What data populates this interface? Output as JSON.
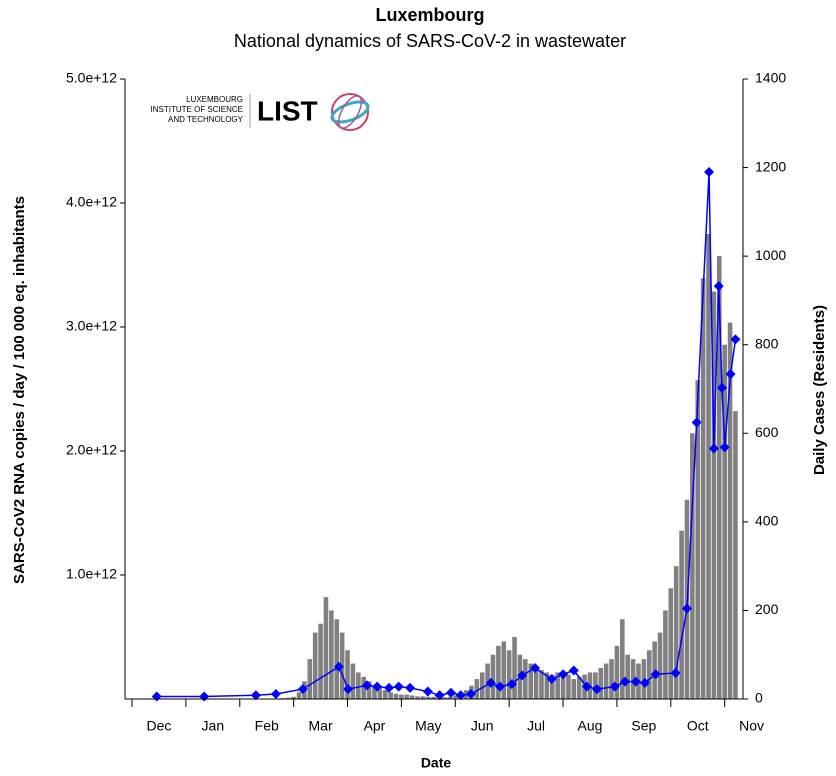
{
  "chart_data": {
    "type": "bar-line",
    "title": "Luxembourg",
    "subtitle": "National dynamics of SARS-CoV-2 in wastewater",
    "xlabel": "Date",
    "ylabel": "SARS-CoV2 RNA copies / day  / 100 000 eq. inhabitants",
    "y2label": "Daily Cases (Residents)",
    "logo": {
      "lines": [
        "LUXEMBOURG",
        "INSTITUTE OF SCIENCE",
        "AND TECHNOLOGY"
      ],
      "name": "LIST"
    },
    "xlim": [
      -0.13,
      11.34
    ],
    "xticks": [
      {
        "value": 0.5,
        "label": "Dec"
      },
      {
        "value": 1.5,
        "label": "Jan"
      },
      {
        "value": 2.5,
        "label": "Feb"
      },
      {
        "value": 3.5,
        "label": "Mar"
      },
      {
        "value": 4.5,
        "label": "Apr"
      },
      {
        "value": 5.5,
        "label": "May"
      },
      {
        "value": 6.5,
        "label": "Jun"
      },
      {
        "value": 7.5,
        "label": "Jul"
      },
      {
        "value": 8.5,
        "label": "Aug"
      },
      {
        "value": 9.5,
        "label": "Sep"
      },
      {
        "value": 10.5,
        "label": "Oct"
      },
      {
        "value": 11.5,
        "label": "Nov"
      }
    ],
    "ylim": [
      0,
      5000000000000.0
    ],
    "yticks": [
      {
        "value": 1000000000000.0,
        "label": "1.0e+12"
      },
      {
        "value": 2000000000000.0,
        "label": "2.0e+12"
      },
      {
        "value": 3000000000000.0,
        "label": "3.0e+12"
      },
      {
        "value": 4000000000000.0,
        "label": "4.0e+12"
      },
      {
        "value": 5000000000000.0,
        "label": "5.0e+12"
      }
    ],
    "y2lim": [
      0,
      1400
    ],
    "y2ticks": [
      0,
      200,
      400,
      600,
      800,
      1000,
      1200,
      1400
    ],
    "series": [
      {
        "name": "Daily cases",
        "type": "bar",
        "axis": "y2",
        "color": "#808080",
        "x": [
          2.8,
          2.9,
          3.0,
          3.1,
          3.2,
          3.3,
          3.4,
          3.5,
          3.6,
          3.7,
          3.8,
          3.9,
          4.0,
          4.1,
          4.2,
          4.3,
          4.4,
          4.5,
          4.6,
          4.7,
          4.8,
          4.9,
          5.0,
          5.1,
          5.2,
          5.3,
          5.4,
          5.5,
          5.6,
          5.7,
          5.8,
          5.9,
          6.0,
          6.1,
          6.2,
          6.3,
          6.4,
          6.5,
          6.6,
          6.7,
          6.8,
          6.9,
          7.0,
          7.1,
          7.2,
          7.3,
          7.4,
          7.5,
          7.6,
          7.7,
          7.8,
          7.9,
          8.0,
          8.1,
          8.2,
          8.3,
          8.4,
          8.5,
          8.6,
          8.7,
          8.8,
          8.9,
          9.0,
          9.1,
          9.2,
          9.3,
          9.4,
          9.5,
          9.6,
          9.7,
          9.8,
          9.9,
          10.0,
          10.1,
          10.2,
          10.3,
          10.4,
          10.5,
          10.6,
          10.7,
          10.8,
          10.9,
          11.0,
          11.1,
          11.2
        ],
        "values": [
          2,
          3,
          5,
          15,
          40,
          90,
          150,
          170,
          230,
          200,
          180,
          150,
          110,
          80,
          60,
          50,
          40,
          30,
          25,
          20,
          15,
          12,
          10,
          10,
          8,
          6,
          6,
          5,
          5,
          4,
          4,
          5,
          8,
          10,
          20,
          30,
          45,
          60,
          80,
          100,
          120,
          130,
          110,
          140,
          100,
          90,
          80,
          70,
          65,
          60,
          55,
          60,
          50,
          55,
          45,
          50,
          55,
          60,
          60,
          70,
          80,
          90,
          120,
          180,
          100,
          90,
          80,
          90,
          110,
          130,
          150,
          200,
          250,
          300,
          380,
          450,
          600,
          720,
          950,
          1050,
          920,
          1000,
          800,
          850,
          650
        ]
      },
      {
        "name": "Wastewater",
        "type": "line",
        "axis": "y",
        "color": "#0000ff",
        "x": [
          0.46,
          1.34,
          2.3,
          2.67,
          3.17,
          3.84,
          4.01,
          4.36,
          4.55,
          4.77,
          4.95,
          5.16,
          5.49,
          5.71,
          5.92,
          6.1,
          6.29,
          6.66,
          6.83,
          7.05,
          7.24,
          7.48,
          7.79,
          8.0,
          8.2,
          8.44,
          8.63,
          8.96,
          9.15,
          9.35,
          9.52,
          9.72,
          10.09,
          10.3,
          10.48,
          10.71,
          10.8,
          10.89,
          10.95,
          11.0,
          11.11,
          11.2
        ],
        "values": [
          20000000000.0,
          20000000000.0,
          30000000000.0,
          40000000000.0,
          80000000000.0,
          260000000000.0,
          80000000000.0,
          110000000000.0,
          100000000000.0,
          90000000000.0,
          100000000000.0,
          90000000000.0,
          60000000000.0,
          30000000000.0,
          50000000000.0,
          30000000000.0,
          40000000000.0,
          130000000000.0,
          100000000000.0,
          120000000000.0,
          190000000000.0,
          250000000000.0,
          160000000000.0,
          200000000000.0,
          230000000000.0,
          100000000000.0,
          80000000000.0,
          100000000000.0,
          140000000000.0,
          140000000000.0,
          130000000000.0,
          200000000000.0,
          210000000000.0,
          730000000000.0,
          2230000000000.0,
          4250000000000.0,
          2020000000000.0,
          3330000000000.0,
          2510000000000.0,
          2030000000000.0,
          2620000000000.0,
          2900000000000.0
        ]
      }
    ]
  }
}
